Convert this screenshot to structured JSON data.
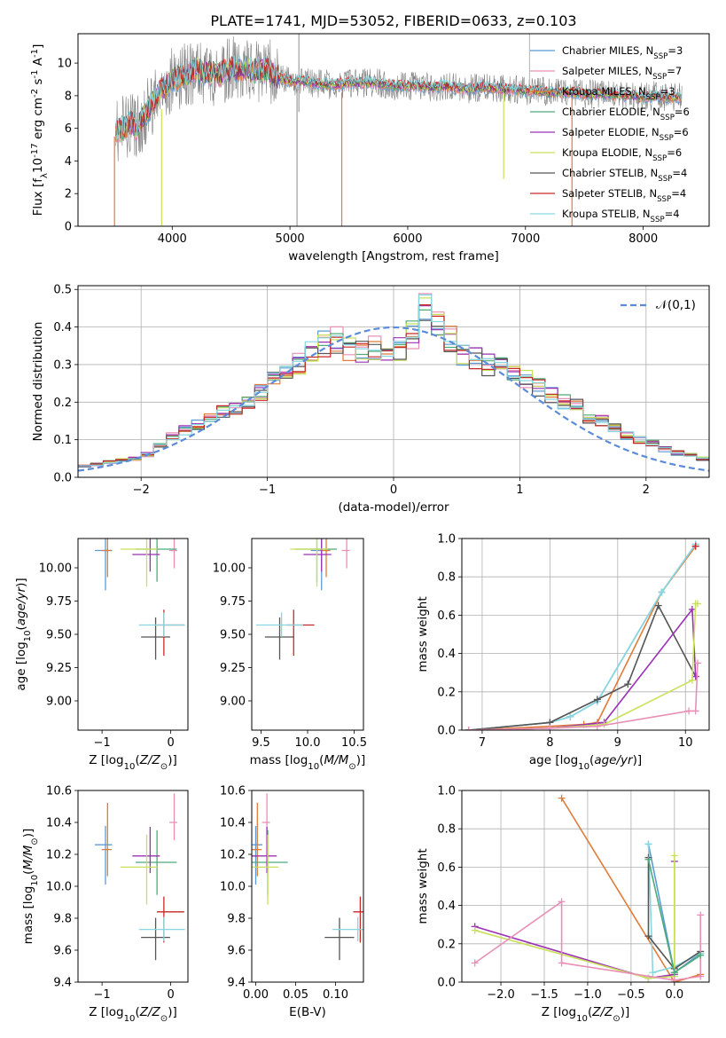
{
  "chart_data": [
    {
      "type": "line",
      "title": "PLATE=1741, MJD=53052, FIBERID=0633, z=0.103",
      "xlabel": "wavelength [Angstrom, rest frame]",
      "ylabel": "Flux [f$_\\lambda$10$^{-17}$ erg cm$^{-2}$ s$^{-1}$ A$^{-1}$]",
      "xlim": [
        3200,
        8560
      ],
      "ylim": [
        0,
        11.8
      ],
      "xticks": [
        "4000",
        "5000",
        "6000",
        "7000",
        "8000"
      ],
      "yticks": [
        "0",
        "2",
        "4",
        "6",
        "8",
        "10"
      ],
      "grid": false,
      "legend_position": "top-right",
      "series": [
        {
          "name": "Chabrier MILES, N$_{SSP}$=3",
          "color": "#5b9bd5"
        },
        {
          "name": "Salpeter MILES, N$_{SSP}$=7",
          "color": "#e98fb7"
        },
        {
          "name": "Kroupa MILES, N$_{SSP}$=3",
          "color": "#e07b39"
        },
        {
          "name": "Chabrier ELODIE, N$_{SSP}$=6",
          "color": "#4dab7a"
        },
        {
          "name": "Salpeter ELODIE, N$_{SSP}$=6",
          "color": "#9b30b5"
        },
        {
          "name": "Kroupa ELODIE, N$_{SSP}$=6",
          "color": "#c8e05a"
        },
        {
          "name": "Chabrier STELIB, N$_{SSP}$=4",
          "color": "#555555"
        },
        {
          "name": "Salpeter STELIB, N$_{SSP}$=4",
          "color": "#c62828"
        },
        {
          "name": "Kroupa STELIB, N$_{SSP}$=4",
          "color": "#86d7e0"
        }
      ],
      "x": [
        3520,
        3560,
        3650,
        3700,
        3800,
        3900,
        4000,
        4100,
        4200,
        4300,
        4400,
        4500,
        4600,
        4700,
        4800,
        4900,
        5000,
        5100,
        5200,
        5300,
        5400,
        5500,
        5600,
        5700,
        5800,
        5900,
        6000,
        6100,
        6200,
        6300,
        6400,
        6500,
        6600,
        6700,
        6800,
        6900,
        7000,
        7100,
        7200,
        7300,
        7400,
        7500,
        7600,
        7700,
        7800,
        7900,
        8000,
        8100,
        8200,
        8300
      ],
      "model_values": [
        5.8,
        5.9,
        6.3,
        6.0,
        7.2,
        8.3,
        9.0,
        9.2,
        9.6,
        9.4,
        9.3,
        9.6,
        9.7,
        9.5,
        9.6,
        9.1,
        8.9,
        8.9,
        8.8,
        8.7,
        8.7,
        8.8,
        8.8,
        8.8,
        8.7,
        8.6,
        8.6,
        8.6,
        8.5,
        8.6,
        8.5,
        8.4,
        8.5,
        8.5,
        8.4,
        8.4,
        8.3,
        8.3,
        8.2,
        8.2,
        8.2,
        8.1,
        8.1,
        8.1,
        8.0,
        8.0,
        7.9,
        8.0,
        7.9,
        7.9
      ]
    },
    {
      "type": "line",
      "xlabel": "(data-model)/error",
      "ylabel": "Normed distribution",
      "xlim": [
        -2.5,
        2.5
      ],
      "ylim": [
        0,
        0.51
      ],
      "xticks": [
        "−2",
        "−1",
        "0",
        "1",
        "2"
      ],
      "yticks": [
        "0.0",
        "0.1",
        "0.2",
        "0.3",
        "0.4",
        "0.5"
      ],
      "grid": true,
      "legend_position": "top-right",
      "normal_label": "$\\mathcal{N}(0,1)$",
      "bin_edges": [
        -2.5,
        -2.4,
        -2.3,
        -2.2,
        -2.1,
        -2.0,
        -1.9,
        -1.8,
        -1.7,
        -1.6,
        -1.5,
        -1.4,
        -1.3,
        -1.2,
        -1.1,
        -1.0,
        -0.9,
        -0.8,
        -0.7,
        -0.6,
        -0.5,
        -0.4,
        -0.3,
        -0.2,
        -0.1,
        0.0,
        0.1,
        0.2,
        0.3,
        0.4,
        0.5,
        0.6,
        0.7,
        0.8,
        0.9,
        1.0,
        1.1,
        1.2,
        1.3,
        1.4,
        1.5,
        1.6,
        1.7,
        1.8,
        1.9,
        2.0,
        2.1,
        2.2,
        2.3,
        2.4,
        2.5
      ],
      "histogram_envelope": [
        0.03,
        0.035,
        0.04,
        0.045,
        0.05,
        0.06,
        0.085,
        0.11,
        0.125,
        0.14,
        0.16,
        0.175,
        0.185,
        0.2,
        0.225,
        0.255,
        0.28,
        0.3,
        0.33,
        0.355,
        0.365,
        0.345,
        0.34,
        0.345,
        0.33,
        0.34,
        0.38,
        0.45,
        0.41,
        0.37,
        0.33,
        0.32,
        0.3,
        0.3,
        0.27,
        0.26,
        0.24,
        0.22,
        0.2,
        0.19,
        0.16,
        0.15,
        0.13,
        0.11,
        0.1,
        0.09,
        0.075,
        0.065,
        0.06,
        0.05
      ]
    },
    {
      "type": "scatter",
      "xlabel": "Z [log$_{10}$($Z/Z_\\odot$)]",
      "ylabel": "age  [log$_{10}$($age/yr$)]",
      "xlim": [
        -1.35,
        0.25
      ],
      "ylim": [
        8.78,
        10.22
      ],
      "xticks": [
        "−1",
        "0"
      ],
      "yticks": [
        "9.00",
        "9.25",
        "9.50",
        "9.75",
        "10.00"
      ],
      "points": [
        {
          "x": -0.95,
          "y": 10.13,
          "color": "#5b9bd5"
        },
        {
          "x": 0.05,
          "y": 10.13,
          "color": "#e98fb7"
        },
        {
          "x": -0.92,
          "y": 10.13,
          "color": "#e07b39"
        },
        {
          "x": -0.2,
          "y": 10.14,
          "color": "#4dab7a"
        },
        {
          "x": -0.3,
          "y": 10.1,
          "color": "#9b30b5"
        },
        {
          "x": -0.35,
          "y": 10.14,
          "color": "#c8e05a"
        },
        {
          "x": -0.22,
          "y": 9.48,
          "color": "#555555"
        },
        {
          "x": -0.1,
          "y": 9.57,
          "color": "#c62828"
        },
        {
          "x": -0.1,
          "y": 9.57,
          "color": "#86d7e0"
        }
      ]
    },
    {
      "type": "scatter",
      "xlabel": "mass [log$_{10}$($M/M_\\odot$)]",
      "xlim": [
        9.4,
        10.6
      ],
      "ylim": [
        8.78,
        10.22
      ],
      "xticks": [
        "9.5",
        "10.0",
        "10.5"
      ],
      "yticks": [
        "9.00",
        "9.25",
        "9.50",
        "9.75",
        "10.00"
      ],
      "points": [
        {
          "x": 10.15,
          "y": 10.13,
          "color": "#5b9bd5"
        },
        {
          "x": 10.42,
          "y": 10.13,
          "color": "#e98fb7"
        },
        {
          "x": 10.2,
          "y": 10.13,
          "color": "#e07b39"
        },
        {
          "x": 10.1,
          "y": 10.14,
          "color": "#4dab7a"
        },
        {
          "x": 10.15,
          "y": 10.1,
          "color": "#9b30b5"
        },
        {
          "x": 10.1,
          "y": 10.14,
          "color": "#c8e05a"
        },
        {
          "x": 9.7,
          "y": 9.48,
          "color": "#555555"
        },
        {
          "x": 9.85,
          "y": 9.57,
          "color": "#c62828"
        },
        {
          "x": 9.72,
          "y": 9.57,
          "color": "#86d7e0"
        }
      ]
    },
    {
      "type": "line",
      "xlabel": "age  [log$_{10}$($age/yr$)]",
      "ylabel": "mass weight",
      "xlim": [
        6.7,
        10.35
      ],
      "ylim": [
        0,
        1.0
      ],
      "xticks": [
        "7",
        "8",
        "9",
        "10"
      ],
      "yticks": [
        "0.0",
        "0.2",
        "0.4",
        "0.6",
        "0.8",
        "1.0"
      ],
      "grid": true,
      "series": [
        {
          "color": "#5b9bd5",
          "x": [
            6.8,
            8.0,
            8.3,
            8.7,
            9.65,
            10.15
          ],
          "y": [
            0.0,
            0.04,
            0.07,
            0.15,
            0.72,
            0.97
          ]
        },
        {
          "color": "#e07b39",
          "x": [
            6.8,
            8.0,
            8.5,
            8.7,
            9.65,
            10.15
          ],
          "y": [
            0.0,
            0.02,
            0.03,
            0.04,
            0.72,
            0.96
          ]
        },
        {
          "color": "#86d7e0",
          "x": [
            6.8,
            8.0,
            8.3,
            8.7,
            9.65,
            10.15
          ],
          "y": [
            0.0,
            0.04,
            0.07,
            0.15,
            0.72,
            0.97
          ]
        },
        {
          "color": "#555555",
          "x": [
            6.8,
            8.0,
            8.7,
            9.15,
            9.6,
            10.15
          ],
          "y": [
            0.0,
            0.04,
            0.16,
            0.24,
            0.65,
            0.28
          ]
        },
        {
          "color": "#9b30b5",
          "x": [
            6.8,
            8.0,
            8.8,
            10.1,
            10.15
          ],
          "y": [
            0.0,
            0.01,
            0.04,
            0.63,
            0.28
          ]
        },
        {
          "color": "#c8e05a",
          "x": [
            6.8,
            8.0,
            8.8,
            10.1,
            10.15,
            10.18
          ],
          "y": [
            0.0,
            0.01,
            0.03,
            0.26,
            0.66,
            0.66
          ]
        },
        {
          "color": "#e98fb7",
          "x": [
            6.8,
            8.0,
            8.7,
            10.05,
            10.15,
            10.18
          ],
          "y": [
            0.0,
            0.01,
            0.02,
            0.1,
            0.1,
            0.35
          ]
        },
        {
          "color": "#c62828",
          "x": [
            10.15
          ],
          "y": [
            0.96
          ]
        }
      ]
    },
    {
      "type": "scatter",
      "xlabel": "Z [log$_{10}$($Z/Z_\\odot$)]",
      "ylabel": "mass [log$_{10}$($M/M_\\odot$)]",
      "xlim": [
        -1.35,
        0.25
      ],
      "ylim": [
        9.4,
        10.6
      ],
      "xticks": [
        "−1",
        "0"
      ],
      "yticks": [
        "9.4",
        "9.6",
        "9.8",
        "10.0",
        "10.2",
        "10.4",
        "10.6"
      ],
      "points": [
        {
          "x": -0.95,
          "y": 10.26,
          "color": "#5b9bd5"
        },
        {
          "x": 0.05,
          "y": 10.4,
          "color": "#e98fb7"
        },
        {
          "x": -0.92,
          "y": 10.23,
          "color": "#e07b39"
        },
        {
          "x": -0.2,
          "y": 10.15,
          "color": "#4dab7a"
        },
        {
          "x": -0.3,
          "y": 10.19,
          "color": "#9b30b5"
        },
        {
          "x": -0.35,
          "y": 10.12,
          "color": "#c8e05a"
        },
        {
          "x": -0.22,
          "y": 9.68,
          "color": "#555555"
        },
        {
          "x": -0.1,
          "y": 9.84,
          "color": "#c62828"
        },
        {
          "x": -0.1,
          "y": 9.73,
          "color": "#86d7e0"
        }
      ]
    },
    {
      "type": "scatter",
      "xlabel": "E(B-V)",
      "xlim": [
        -0.005,
        0.135
      ],
      "ylim": [
        9.4,
        10.6
      ],
      "xticks": [
        "0.00",
        "0.05",
        "0.10"
      ],
      "yticks": [
        "9.4",
        "9.6",
        "9.8",
        "10.0",
        "10.2",
        "10.4",
        "10.6"
      ],
      "points": [
        {
          "x": 0.0,
          "y": 10.26,
          "color": "#5b9bd5"
        },
        {
          "x": 0.014,
          "y": 10.4,
          "color": "#e98fb7"
        },
        {
          "x": 0.002,
          "y": 10.23,
          "color": "#e07b39"
        },
        {
          "x": 0.015,
          "y": 10.15,
          "color": "#4dab7a"
        },
        {
          "x": 0.014,
          "y": 10.19,
          "color": "#9b30b5"
        },
        {
          "x": 0.015,
          "y": 10.12,
          "color": "#c8e05a"
        },
        {
          "x": 0.105,
          "y": 9.68,
          "color": "#555555"
        },
        {
          "x": 0.131,
          "y": 9.84,
          "color": "#c62828"
        },
        {
          "x": 0.128,
          "y": 9.73,
          "color": "#86d7e0"
        }
      ]
    },
    {
      "type": "line",
      "xlabel": "Z [log$_{10}$($Z/Z_\\odot$)]",
      "ylabel": "mass weight",
      "xlim": [
        -2.45,
        0.4
      ],
      "ylim": [
        0,
        1.0
      ],
      "xticks": [
        "−2.0",
        "−1.5",
        "−1.0",
        "−0.5",
        "0.0"
      ],
      "yticks": [
        "0.0",
        "0.2",
        "0.4",
        "0.6",
        "0.8",
        "1.0"
      ],
      "grid": true,
      "series": [
        {
          "color": "#e07b39",
          "x": [
            -1.3,
            0.0,
            0.3
          ],
          "y": [
            0.96,
            0.0,
            0.04
          ]
        },
        {
          "color": "#5b9bd5",
          "x": [
            -0.3,
            0.0,
            0.3
          ],
          "y": [
            0.72,
            0.05,
            0.15
          ]
        },
        {
          "color": "#86d7e0",
          "x": [
            -0.3,
            -0.25,
            0.0,
            0.3
          ],
          "y": [
            0.72,
            0.05,
            0.08,
            0.15
          ]
        },
        {
          "color": "#555555",
          "x": [
            -0.3,
            -0.3,
            0.0,
            0.3
          ],
          "y": [
            0.65,
            0.24,
            0.07,
            0.16
          ]
        },
        {
          "color": "#9b30b5",
          "x": [
            -2.3,
            -0.3,
            0.0,
            0.0
          ],
          "y": [
            0.29,
            0.02,
            0.04,
            0.63
          ]
        },
        {
          "color": "#c8e05a",
          "x": [
            -2.3,
            -0.3,
            0.0,
            0.0
          ],
          "y": [
            0.27,
            0.02,
            0.03,
            0.66
          ]
        },
        {
          "color": "#e98fb7",
          "x": [
            -2.3,
            -1.3,
            -1.3,
            0.0,
            0.3,
            0.3
          ],
          "y": [
            0.1,
            0.42,
            0.1,
            0.01,
            0.03,
            0.35
          ]
        },
        {
          "color": "#4dab7a",
          "x": [
            -0.3,
            0.0,
            0.3
          ],
          "y": [
            0.64,
            0.05,
            0.14
          ]
        }
      ]
    }
  ]
}
